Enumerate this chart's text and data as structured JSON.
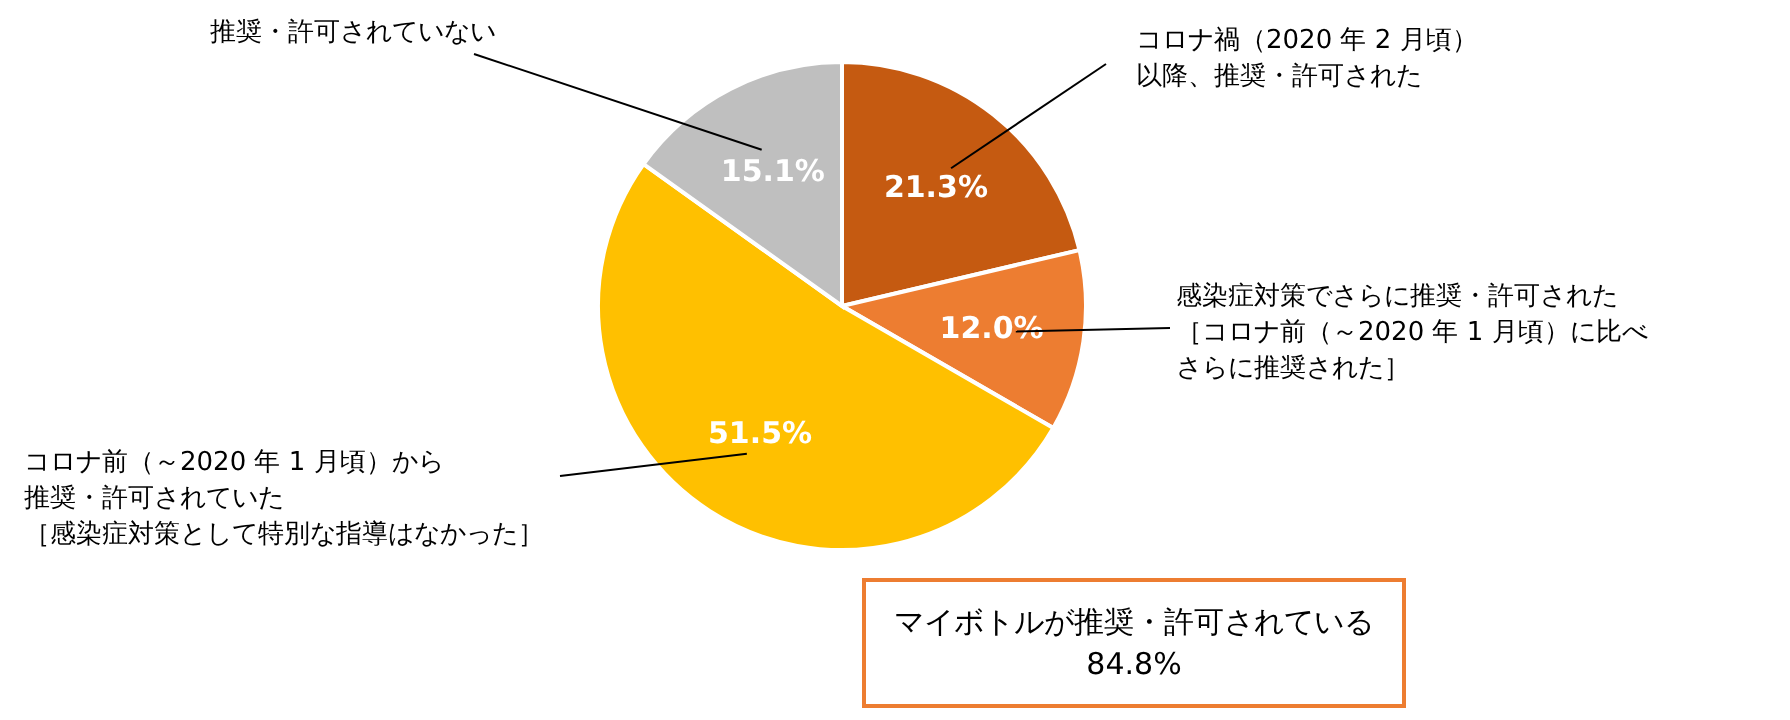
{
  "chart_data": {
    "type": "pie",
    "categories": [
      "コロナ禍（2020 年 2 月頃）以降、推奨・許可された",
      "感染症対策でさらに推奨・許可された［コロナ前（～2020 年 1 月頃）に比べさらに推奨された］",
      "コロナ前（～2020 年 1 月頃）から推奨・許可されていた［感染症対策として特別な指導はなかった］",
      "推奨・許可されていない"
    ],
    "values": [
      21.3,
      12.0,
      51.5,
      15.1
    ],
    "colors": [
      "#c55a11",
      "#ed7d31",
      "#ffc000",
      "#bfbfbf"
    ],
    "value_labels": [
      "21.3%",
      "12.0%",
      "51.5%",
      "15.1%"
    ],
    "annotations": [
      "マイボトルが推奨・許可されている\n84.8%"
    ]
  }
}
